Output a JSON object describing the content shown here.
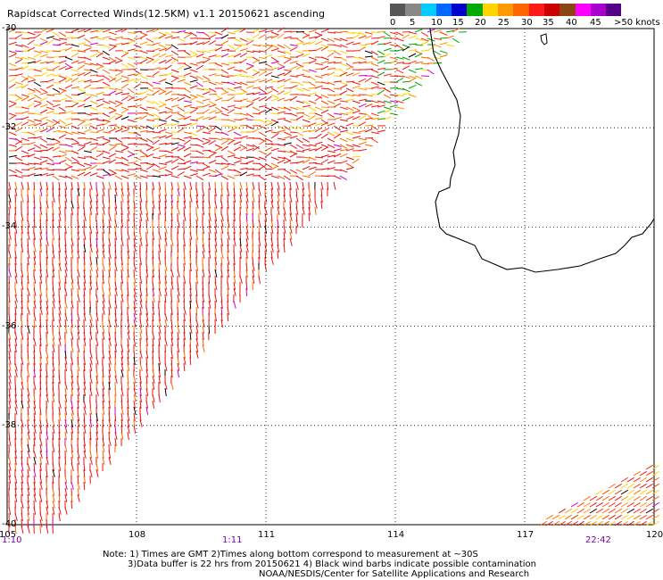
{
  "title": "Rapidscat Corrected Winds(12.5KM) v1.1 20150621 ascending",
  "legend": {
    "colors": [
      "#555555",
      "#888888",
      "#00ccff",
      "#0066ff",
      "#0000cc",
      "#00aa00",
      "#ffd400",
      "#ff9900",
      "#ff6600",
      "#ff1a1a",
      "#cc0000",
      "#8b4513",
      "#ff00ff",
      "#aa00cc",
      "#550088"
    ],
    "labels": [
      "0",
      "5",
      "10",
      "15",
      "20",
      "25",
      "30",
      "35",
      "40",
      "45",
      ">50 knots"
    ]
  },
  "map": {
    "lon_ticks": [
      "105",
      "108",
      "111",
      "114",
      "117",
      "120"
    ],
    "lat_ticks": [
      "-30",
      "-32",
      "-34",
      "-36",
      "-38",
      "-40"
    ],
    "times": [
      "1:10",
      "1:11",
      "22:42"
    ]
  },
  "notes": {
    "line1": "Note: 1) Times are GMT 2)Times along bottom correspond to measurement at ~30S",
    "line2": "3)Data buffer is 22 hrs from 20150621 4) Black wind barbs indicate possible contamination",
    "line3": "NOAA/NESDIS/Center for Satellite Applications and Research"
  }
}
